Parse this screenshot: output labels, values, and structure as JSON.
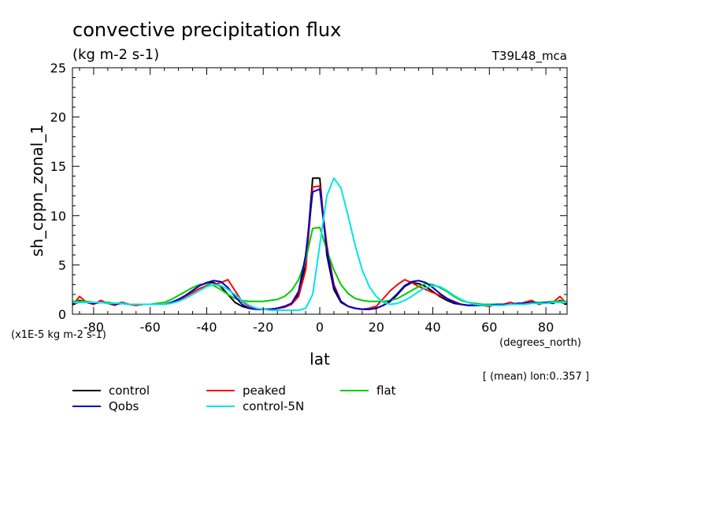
{
  "chart_data": {
    "type": "line",
    "title": "convective precipitation flux",
    "subtitle": "(kg m-2 s-1)",
    "experiment": "T39L48_mca",
    "ylabel": "sh_cppn_zonal_1",
    "xlabel": "lat",
    "x_units": "(degrees_north)",
    "y_scale_note": "(x1E-5 kg m-2 s-1)",
    "mean_note": "[ (mean) lon:0..357 ]",
    "xlim": [
      -87.5,
      87.5
    ],
    "ylim": [
      0,
      25
    ],
    "xticks": [
      -80,
      -60,
      -40,
      -20,
      0,
      20,
      40,
      60,
      80
    ],
    "yticks": [
      0,
      5,
      10,
      15,
      20,
      25
    ],
    "legend_position": "bottom",
    "x": [
      -87.5,
      -85,
      -82.5,
      -80,
      -77.5,
      -75,
      -72.5,
      -70,
      -67.5,
      -65,
      -62.5,
      -60,
      -57.5,
      -55,
      -52.5,
      -50,
      -47.5,
      -45,
      -42.5,
      -40,
      -37.5,
      -35,
      -32.5,
      -30,
      -27.5,
      -25,
      -22.5,
      -20,
      -17.5,
      -15,
      -12.5,
      -10,
      -7.5,
      -5,
      -2.5,
      0,
      2.5,
      5,
      7.5,
      10,
      12.5,
      15,
      17.5,
      20,
      22.5,
      25,
      27.5,
      30,
      32.5,
      35,
      37.5,
      40,
      42.5,
      45,
      47.5,
      50,
      52.5,
      55,
      57.5,
      60,
      62.5,
      65,
      67.5,
      70,
      72.5,
      75,
      77.5,
      80,
      82.5,
      85,
      87.5
    ],
    "series": [
      {
        "name": "control",
        "color": "#000000",
        "values": [
          1.1,
          1.4,
          1.2,
          1.1,
          1.3,
          1.1,
          1.0,
          1.2,
          1.0,
          0.9,
          1.0,
          1.0,
          1.0,
          1.0,
          1.2,
          1.5,
          1.9,
          2.4,
          2.9,
          3.2,
          3.2,
          2.8,
          2.0,
          1.2,
          0.8,
          0.6,
          0.5,
          0.5,
          0.5,
          0.6,
          0.7,
          1.0,
          2.0,
          5.0,
          13.8,
          13.8,
          6.0,
          2.5,
          1.2,
          0.8,
          0.6,
          0.5,
          0.5,
          0.6,
          0.9,
          1.3,
          2.0,
          2.8,
          3.2,
          3.1,
          2.8,
          2.3,
          1.8,
          1.4,
          1.1,
          1.0,
          0.9,
          0.9,
          0.9,
          0.9,
          1.0,
          1.0,
          1.0,
          1.1,
          1.1,
          1.2,
          1.1,
          1.2,
          1.1,
          1.4,
          1.1
        ]
      },
      {
        "name": "peaked",
        "color": "#ff0000",
        "values": [
          0.9,
          1.8,
          1.2,
          1.0,
          1.4,
          1.1,
          0.9,
          1.2,
          1.0,
          0.9,
          1.0,
          1.0,
          1.0,
          1.0,
          1.2,
          1.4,
          1.8,
          2.2,
          2.6,
          2.9,
          3.0,
          3.2,
          3.5,
          2.4,
          1.3,
          0.8,
          0.6,
          0.5,
          0.5,
          0.6,
          0.7,
          1.0,
          1.8,
          4.5,
          12.9,
          13.0,
          7.0,
          3.0,
          1.3,
          0.8,
          0.6,
          0.5,
          0.6,
          0.8,
          1.6,
          2.4,
          3.0,
          3.5,
          3.2,
          2.8,
          2.5,
          2.2,
          1.9,
          1.6,
          1.3,
          1.0,
          0.9,
          0.9,
          0.9,
          0.8,
          1.0,
          1.0,
          1.2,
          1.0,
          1.2,
          1.4,
          1.0,
          1.2,
          1.2,
          1.8,
          1.0
        ]
      },
      {
        "name": "flat",
        "color": "#00cc00",
        "values": [
          1.3,
          1.3,
          1.3,
          1.2,
          1.2,
          1.2,
          1.1,
          1.1,
          1.0,
          1.0,
          1.0,
          1.0,
          1.1,
          1.2,
          1.5,
          1.9,
          2.3,
          2.7,
          3.0,
          3.1,
          2.9,
          2.5,
          2.0,
          1.6,
          1.4,
          1.3,
          1.3,
          1.3,
          1.4,
          1.5,
          1.8,
          2.4,
          3.5,
          5.5,
          8.7,
          8.8,
          6.5,
          4.5,
          3.0,
          2.1,
          1.6,
          1.4,
          1.3,
          1.3,
          1.3,
          1.4,
          1.6,
          2.0,
          2.4,
          2.8,
          3.1,
          3.0,
          2.7,
          2.3,
          1.8,
          1.4,
          1.2,
          1.1,
          1.0,
          1.0,
          1.0,
          1.0,
          1.0,
          1.1,
          1.1,
          1.2,
          1.2,
          1.2,
          1.3,
          1.3,
          1.3
        ]
      },
      {
        "name": "Qobs",
        "color": "#0000cc",
        "values": [
          1.1,
          1.2,
          1.2,
          1.1,
          1.2,
          1.1,
          1.0,
          1.1,
          1.0,
          1.0,
          1.0,
          1.0,
          1.0,
          1.0,
          1.2,
          1.5,
          1.9,
          2.4,
          2.9,
          3.2,
          3.4,
          3.3,
          2.7,
          1.8,
          1.0,
          0.6,
          0.5,
          0.5,
          0.5,
          0.6,
          0.8,
          1.1,
          2.3,
          6.0,
          12.4,
          12.7,
          6.5,
          2.8,
          1.3,
          0.8,
          0.6,
          0.5,
          0.5,
          0.6,
          0.9,
          1.4,
          2.1,
          2.9,
          3.3,
          3.4,
          3.2,
          2.7,
          2.1,
          1.6,
          1.2,
          1.0,
          0.9,
          0.9,
          0.9,
          0.9,
          1.0,
          1.0,
          1.0,
          1.1,
          1.1,
          1.2,
          1.1,
          1.2,
          1.2,
          1.2,
          1.1
        ]
      },
      {
        "name": "control-5N",
        "color": "#00e5e5",
        "values": [
          1.2,
          1.2,
          1.2,
          1.2,
          1.2,
          1.1,
          1.1,
          1.1,
          1.0,
          1.0,
          1.0,
          1.0,
          1.0,
          1.0,
          1.1,
          1.3,
          1.6,
          2.0,
          2.4,
          2.8,
          3.0,
          2.9,
          2.5,
          2.0,
          1.4,
          0.9,
          0.6,
          0.5,
          0.4,
          0.4,
          0.4,
          0.4,
          0.4,
          0.6,
          2.0,
          7.0,
          12.0,
          13.8,
          12.8,
          10.0,
          7.0,
          4.5,
          2.8,
          1.8,
          1.2,
          1.0,
          1.1,
          1.4,
          1.8,
          2.3,
          2.7,
          2.9,
          2.8,
          2.4,
          1.9,
          1.5,
          1.2,
          1.0,
          0.9,
          0.9,
          0.9,
          0.9,
          1.0,
          1.0,
          1.0,
          1.1,
          1.1,
          1.1,
          1.2,
          1.2,
          1.2
        ]
      }
    ]
  }
}
